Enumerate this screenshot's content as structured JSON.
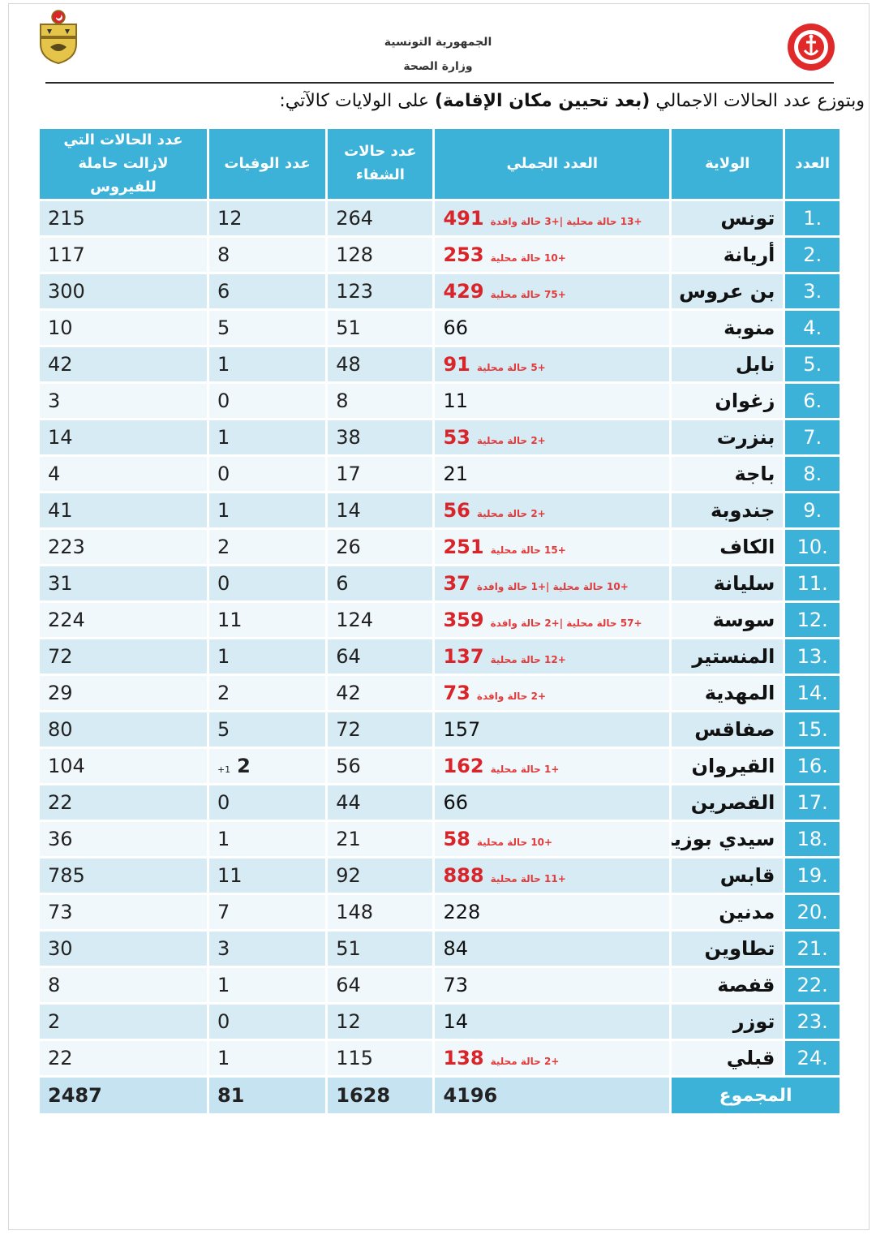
{
  "header": {
    "country": "الجمهورية التونسية",
    "ministry": "وزارة الصحة",
    "intro_plain_1": "وبتوزع عدد الحالات الاجمالي ",
    "intro_bold": "(بعد تحيين مكان الإقامة)",
    "intro_plain_2": " على الولايات كالآتي:",
    "colors": {
      "header_blue": "#3db2d9",
      "note_red": "#d9252a"
    }
  },
  "table": {
    "headers": {
      "number": "العدد",
      "governorate": "الولاية",
      "total": "العدد الجملي",
      "recovered": "عدد حالات الشفاء",
      "deaths": "عدد الوفيات",
      "active": "عدد الحالات التي لازالت حاملة للفيروس"
    },
    "rows": [
      {
        "no": ".1",
        "gov": "تونس",
        "total": "491",
        "note": "+13 حالة محلية |+3 حالة وافدة",
        "recovered": "264",
        "deaths": "12",
        "deaths_note": "",
        "active": "215"
      },
      {
        "no": ".2",
        "gov": "أريانة",
        "total": "253",
        "note": "+10 حالة محلية",
        "recovered": "128",
        "deaths": "8",
        "deaths_note": "",
        "active": "117"
      },
      {
        "no": ".3",
        "gov": "بن عروس",
        "total": "429",
        "note": "+75 حالة محلية",
        "recovered": "123",
        "deaths": "6",
        "deaths_note": "",
        "active": "300"
      },
      {
        "no": ".4",
        "gov": "منوبة",
        "total": "66",
        "note": "",
        "recovered": "51",
        "deaths": "5",
        "deaths_note": "",
        "active": "10"
      },
      {
        "no": ".5",
        "gov": "نابل",
        "total": "91",
        "note": "+5 حالة محلية",
        "recovered": "48",
        "deaths": "1",
        "deaths_note": "",
        "active": "42"
      },
      {
        "no": ".6",
        "gov": "زغوان",
        "total": "11",
        "note": "",
        "recovered": "8",
        "deaths": "0",
        "deaths_note": "",
        "active": "3"
      },
      {
        "no": ".7",
        "gov": "بنزرت",
        "total": "53",
        "note": "+2 حالة محلية",
        "recovered": "38",
        "deaths": "1",
        "deaths_note": "",
        "active": "14"
      },
      {
        "no": ".8",
        "gov": "باجة",
        "total": "21",
        "note": "",
        "recovered": "17",
        "deaths": "0",
        "deaths_note": "",
        "active": "4"
      },
      {
        "no": ".9",
        "gov": "جندوبة",
        "total": "56",
        "note": "+2 حالة محلية",
        "recovered": "14",
        "deaths": "1",
        "deaths_note": "",
        "active": "41"
      },
      {
        "no": ".10",
        "gov": "الكاف",
        "total": "251",
        "note": "+15 حالة محلية",
        "recovered": "26",
        "deaths": "2",
        "deaths_note": "",
        "active": "223"
      },
      {
        "no": ".11",
        "gov": "سليانة",
        "total": "37",
        "note": "+10 حالة محلية |+1 حالة وافدة",
        "recovered": "6",
        "deaths": "0",
        "deaths_note": "",
        "active": "31"
      },
      {
        "no": ".12",
        "gov": "سوسة",
        "total": "359",
        "note": "+57 حالة محلية |+2 حالة وافدة",
        "recovered": "124",
        "deaths": "11",
        "deaths_note": "",
        "active": "224"
      },
      {
        "no": ".13",
        "gov": "المنستير",
        "total": "137",
        "note": "+12 حالة محلية",
        "recovered": "64",
        "deaths": "1",
        "deaths_note": "",
        "active": "72"
      },
      {
        "no": ".14",
        "gov": "المهدية",
        "total": "73",
        "note": "+2 حالة وافدة",
        "recovered": "42",
        "deaths": "2",
        "deaths_note": "",
        "active": "29"
      },
      {
        "no": ".15",
        "gov": "صفاقس",
        "total": "157",
        "note": "",
        "recovered": "72",
        "deaths": "5",
        "deaths_note": "",
        "active": "80"
      },
      {
        "no": ".16",
        "gov": "القيروان",
        "total": "162",
        "note": "+1 حالة محلية",
        "recovered": "56",
        "deaths": "2",
        "deaths_note": "+1",
        "active": "104"
      },
      {
        "no": ".17",
        "gov": "القصرين",
        "total": "66",
        "note": "",
        "recovered": "44",
        "deaths": "0",
        "deaths_note": "",
        "active": "22"
      },
      {
        "no": ".18",
        "gov": "سيدي بوزيد",
        "total": "58",
        "note": "+10 حالة محلية",
        "recovered": "21",
        "deaths": "1",
        "deaths_note": "",
        "active": "36"
      },
      {
        "no": ".19",
        "gov": "قابس",
        "total": "888",
        "note": "+11 حالة محلية",
        "recovered": "92",
        "deaths": "11",
        "deaths_note": "",
        "active": "785"
      },
      {
        "no": ".20",
        "gov": "مدنين",
        "total": "228",
        "note": "",
        "recovered": "148",
        "deaths": "7",
        "deaths_note": "",
        "active": "73"
      },
      {
        "no": ".21",
        "gov": "تطاوين",
        "total": "84",
        "note": "",
        "recovered": "51",
        "deaths": "3",
        "deaths_note": "",
        "active": "30"
      },
      {
        "no": ".22",
        "gov": "قفصة",
        "total": "73",
        "note": "",
        "recovered": "64",
        "deaths": "1",
        "deaths_note": "",
        "active": "8"
      },
      {
        "no": ".23",
        "gov": "توزر",
        "total": "14",
        "note": "",
        "recovered": "12",
        "deaths": "0",
        "deaths_note": "",
        "active": "2"
      },
      {
        "no": ".24",
        "gov": "قبلي",
        "total": "138",
        "note": "+2 حالة محلية",
        "recovered": "115",
        "deaths": "1",
        "deaths_note": "",
        "active": "22"
      }
    ],
    "sum": {
      "label": "المجموع",
      "total": "4196",
      "recovered": "1628",
      "deaths": "81",
      "active": "2487"
    }
  }
}
